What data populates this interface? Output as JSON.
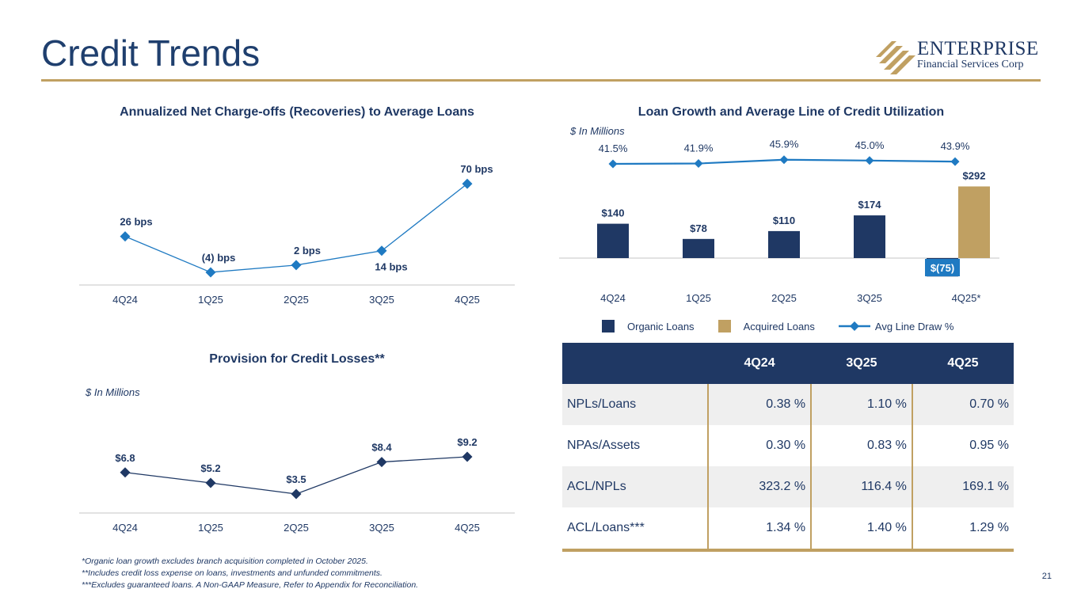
{
  "page": {
    "title": "Credit Trends",
    "page_number": "21",
    "logo": {
      "line1": "ENTERPRISE",
      "line2": "Financial Services Corp"
    }
  },
  "colors": {
    "navy": "#1f3864",
    "gold": "#c0a062",
    "blue": "#1f7ac2",
    "gridline": "#d9d9d9",
    "table_shade": "#efefef"
  },
  "chart_data": [
    {
      "type": "line",
      "title": "Annualized Net Charge-offs (Recoveries) to Average Loans",
      "categories": [
        "4Q24",
        "1Q25",
        "2Q25",
        "3Q25",
        "4Q25"
      ],
      "series": [
        {
          "values": [
            26,
            -4,
            2,
            14,
            70
          ]
        }
      ],
      "data_labels": [
        "26 bps",
        "(4) bps",
        "2 bps",
        "14 bps",
        "70 bps"
      ],
      "marker": "diamond",
      "color": "#1f7ac2",
      "ylim": [
        -8,
        78
      ]
    },
    {
      "type": "bar",
      "title": "Loan Growth and Average Line of Credit Utilization",
      "unit_label": "$ In Millions",
      "categories": [
        "4Q24",
        "1Q25",
        "2Q25",
        "3Q25",
        "4Q25*"
      ],
      "series": [
        {
          "name": "Organic Loans",
          "values": [
            140,
            78,
            110,
            174,
            -75
          ],
          "labels": [
            "$140",
            "$78",
            "$110",
            "$174",
            "$(75)"
          ],
          "color": "#1f3864"
        },
        {
          "name": "Acquired Loans",
          "values": [
            null,
            null,
            null,
            null,
            292
          ],
          "labels": [
            "",
            "",
            "",
            "",
            "$292"
          ],
          "color": "#c0a062"
        }
      ],
      "line_series": {
        "name": "Avg Line Draw %",
        "values": [
          41.5,
          41.9,
          45.9,
          45.0,
          43.9
        ],
        "labels": [
          "41.5%",
          "41.9%",
          "45.9%",
          "45.0%",
          "43.9%"
        ],
        "color": "#1f7ac2"
      },
      "legend": [
        "Organic Loans",
        "Acquired Loans",
        "Avg Line Draw %"
      ],
      "legend_position": "bottom"
    },
    {
      "type": "line",
      "title": "Provision for Credit Losses**",
      "unit_label": "$ In Millions",
      "categories": [
        "4Q24",
        "1Q25",
        "2Q25",
        "3Q25",
        "4Q25"
      ],
      "series": [
        {
          "values": [
            6.8,
            5.2,
            3.5,
            8.4,
            9.2
          ]
        }
      ],
      "data_labels": [
        "$6.8",
        "$5.2",
        "$3.5",
        "$8.4",
        "$9.2"
      ],
      "marker": "diamond",
      "color": "#1f3864",
      "ylim": [
        1.8,
        11.5
      ]
    },
    {
      "type": "table",
      "columns": [
        "",
        "4Q24",
        "3Q25",
        "4Q25"
      ],
      "rows": [
        {
          "label": "NPLs/Loans",
          "values": [
            "0.38 %",
            "1.10 %",
            "0.70 %"
          ]
        },
        {
          "label": "NPAs/Assets",
          "values": [
            "0.30 %",
            "0.83 %",
            "0.95 %"
          ]
        },
        {
          "label": "ACL/NPLs",
          "values": [
            "323.2 %",
            "116.4 %",
            "169.1 %"
          ]
        },
        {
          "label": "ACL/Loans***",
          "values": [
            "1.34 %",
            "1.40 %",
            "1.29 %"
          ]
        }
      ]
    }
  ],
  "footnotes": [
    "*Organic loan growth excludes branch acquisition completed in October 2025.",
    "**Includes credit loss expense on loans, investments and unfunded commitments.",
    "***Excludes guaranteed loans. A Non-GAAP Measure, Refer to Appendix for Reconciliation."
  ]
}
